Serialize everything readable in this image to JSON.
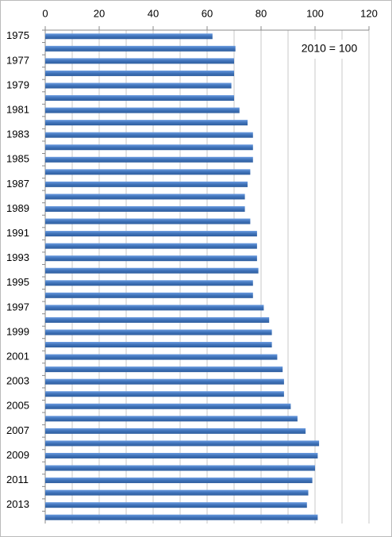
{
  "chart_data": {
    "type": "bar",
    "orientation": "horizontal",
    "categories": [
      "1975",
      null,
      "1977",
      null,
      "1979",
      null,
      "1981",
      null,
      "1983",
      null,
      "1985",
      null,
      "1987",
      null,
      "1989",
      null,
      "1991",
      null,
      "1993",
      null,
      "1995",
      null,
      "1997",
      null,
      "1999",
      null,
      "2001",
      null,
      "2003",
      null,
      "2005",
      null,
      "2007",
      null,
      "2009",
      null,
      "2011",
      null,
      "2013",
      null
    ],
    "values": [
      62,
      70.5,
      70,
      70,
      69,
      70,
      72,
      75,
      77,
      77,
      77,
      76,
      75,
      74,
      74,
      76,
      78.5,
      78.5,
      78.5,
      79,
      77,
      77,
      81,
      83,
      84,
      84,
      86,
      88,
      88.5,
      88.5,
      91,
      93.5,
      96.5,
      101.5,
      101,
      100,
      99,
      97.5,
      97,
      101
    ],
    "color": "#4a7ebb",
    "xlim": [
      0,
      120
    ],
    "xticks": [
      0,
      20,
      40,
      60,
      80,
      100,
      120
    ],
    "minor_xticks": [
      10,
      30,
      50,
      70,
      90,
      110
    ],
    "grid": true,
    "annotation": "2010 = 100"
  }
}
